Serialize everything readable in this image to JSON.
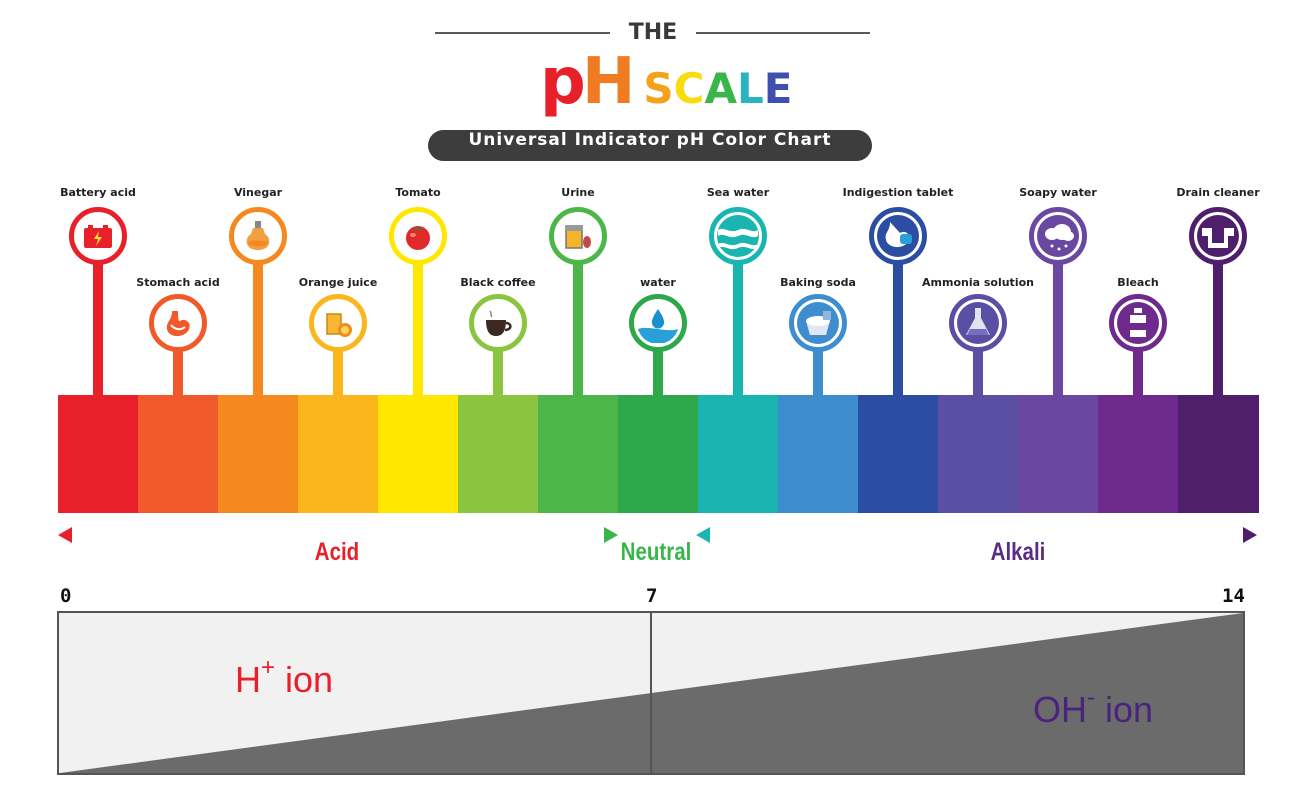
{
  "title": {
    "the": "THE",
    "ph": "pH",
    "scale": "SCALE",
    "subtitle": "Universal Indicator pH Color Chart"
  },
  "title_colors": [
    "#f4a21c",
    "#f9dc0e",
    "#3ab54a",
    "#2bb3c0",
    "#3f4fb0",
    "#7a3e98"
  ],
  "items": [
    {
      "label": "Battery acid",
      "icon": "battery-icon",
      "color": "#e8202a"
    },
    {
      "label": "Stomach acid",
      "icon": "stomach-icon",
      "color": "#f1592b"
    },
    {
      "label": "Vinegar",
      "icon": "vinegar-bottle-icon",
      "color": "#f5891f"
    },
    {
      "label": "Orange juice",
      "icon": "orange-juice-icon",
      "color": "#fbb51d"
    },
    {
      "label": "Tomato",
      "icon": "tomato-icon",
      "color": "#ffe700"
    },
    {
      "label": "Black coffee",
      "icon": "coffee-cup-icon",
      "color": "#8bc53f"
    },
    {
      "label": "Urine",
      "icon": "urine-sample-icon",
      "color": "#4cb748"
    },
    {
      "label": "water",
      "icon": "water-drop-icon",
      "color": "#2ea84a"
    },
    {
      "label": "Sea water",
      "icon": "sea-wave-icon",
      "color": "#1ab5b0"
    },
    {
      "label": "Baking soda",
      "icon": "baking-soda-icon",
      "color": "#3d8dcf"
    },
    {
      "label": "Indigestion tablet",
      "icon": "stomach-tablet-icon",
      "color": "#2b4ea2"
    },
    {
      "label": "Ammonia solution",
      "icon": "flask-icon",
      "color": "#5a4fa3"
    },
    {
      "label": "Soapy water",
      "icon": "soap-cloud-icon",
      "color": "#6a47a1"
    },
    {
      "label": "Bleach",
      "icon": "bleach-bottle-icon",
      "color": "#6e2a8d"
    },
    {
      "label": "Drain cleaner",
      "icon": "drain-pipe-icon",
      "color": "#4f1f6b"
    }
  ],
  "regions": {
    "acid": "Acid",
    "neutral": "Neutral",
    "alkali": "Alkali"
  },
  "region_colors": {
    "acid": "#e8202a",
    "neutral": "#3ab54a",
    "alkali": "#5a2d82"
  },
  "ph_numbers": {
    "start": "0",
    "mid": "7",
    "end": "14"
  },
  "ions": {
    "h_base": "H",
    "h_sup": "+",
    "h_word": " ion",
    "oh_base": "OH",
    "oh_sup": "-",
    "oh_word": " ion"
  },
  "ion_colors": {
    "h": "#e8202a",
    "oh": "#4a237c"
  }
}
